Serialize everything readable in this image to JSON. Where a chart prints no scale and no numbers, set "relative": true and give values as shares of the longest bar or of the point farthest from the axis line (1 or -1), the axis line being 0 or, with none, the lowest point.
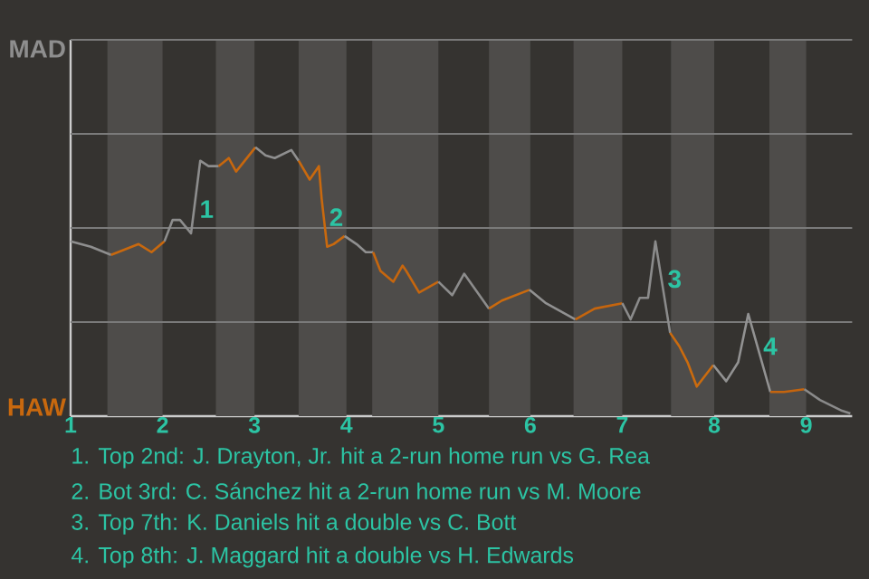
{
  "chart_data": {
    "type": "line",
    "relative": true,
    "xlim": [
      1,
      9.5
    ],
    "xticks": [
      1,
      2,
      3,
      4,
      5,
      6,
      7,
      8,
      9
    ],
    "ref_lines": [
      {
        "axis": "y",
        "value": 0.35,
        "color": "#7a7a7a"
      },
      {
        "axis": "y",
        "value": 0.7,
        "color": "#7a7a7a"
      },
      {
        "axis": "y",
        "value": 1.05,
        "color": "#7a7a7a"
      },
      {
        "axis": "y",
        "value": 1.4,
        "color": "#7a7a7a"
      }
    ],
    "bands": [
      {
        "axis": "x",
        "from": 1.4,
        "to": 2,
        "color": "#4e4c4a"
      },
      {
        "axis": "x",
        "from": 2.58,
        "to": 3,
        "color": "#4e4c4a"
      },
      {
        "axis": "x",
        "from": 3.48,
        "to": 4,
        "color": "#4e4c4a"
      },
      {
        "axis": "x",
        "from": 4.28,
        "to": 5,
        "color": "#4e4c4a"
      },
      {
        "axis": "x",
        "from": 5.55,
        "to": 6,
        "color": "#4e4c4a"
      },
      {
        "axis": "x",
        "from": 6.47,
        "to": 7,
        "color": "#4e4c4a"
      },
      {
        "axis": "x",
        "from": 7.53,
        "to": 8,
        "color": "#4e4c4a"
      },
      {
        "axis": "x",
        "from": 8.6,
        "to": 9,
        "color": "#4e4c4a"
      }
    ],
    "series": [
      {
        "name": "MAD",
        "color": "#8e8e8e",
        "x": [
          1.0,
          1.22,
          1.44
        ],
        "values": [
          0.65,
          0.63,
          0.6
        ]
      },
      {
        "name": "HAW",
        "color": "#c8680e",
        "x": [
          1.44,
          1.74,
          1.88,
          2.02
        ],
        "values": [
          0.6,
          0.64,
          0.61,
          0.65
        ]
      },
      {
        "color": "#8d8d8d",
        "x": [
          2.02,
          2.11,
          2.19,
          2.31,
          2.41,
          2.5,
          2.61
        ],
        "values": [
          0.65,
          0.73,
          0.73,
          0.68,
          0.95,
          0.93,
          0.93
        ]
      },
      {
        "color": "#c7670e",
        "x": [
          2.61,
          2.72,
          2.8,
          3.01
        ],
        "values": [
          0.93,
          0.96,
          0.91,
          1
        ]
      },
      {
        "color": "#8f8f8f",
        "x": [
          3.01,
          3.12,
          3.22,
          3.4,
          3.48
        ],
        "values": [
          1,
          0.97,
          0.96,
          0.99,
          0.95
        ]
      },
      {
        "color": "#c9690e",
        "x": [
          3.48,
          3.6,
          3.7,
          3.73,
          3.79,
          3.86,
          3.98
        ],
        "values": [
          0.95,
          0.88,
          0.93,
          0.81,
          0.63,
          0.64,
          0.67
        ]
      },
      {
        "color": "#909090",
        "x": [
          3.98,
          4.11,
          4.21,
          4.29
        ],
        "values": [
          0.67,
          0.64,
          0.61,
          0.61
        ]
      },
      {
        "color": "#c6660e",
        "x": [
          4.29,
          4.37,
          4.51,
          4.61,
          4.65,
          4.79,
          5.0
        ],
        "values": [
          0.61,
          0.54,
          0.5,
          0.56,
          0.54,
          0.46,
          0.5
        ]
      },
      {
        "color": "#8c8c8c",
        "x": [
          5.0,
          5.15,
          5.28,
          5.55
        ],
        "values": [
          0.5,
          0.45,
          0.53,
          0.4
        ]
      },
      {
        "color": "#ca6a0e",
        "x": [
          5.55,
          5.69,
          5.99
        ],
        "values": [
          0.4,
          0.43,
          0.47
        ]
      },
      {
        "color": "#919191",
        "x": [
          5.99,
          6.17,
          6.49
        ],
        "values": [
          0.47,
          0.42,
          0.36
        ]
      },
      {
        "color": "#c5650e",
        "x": [
          6.49,
          6.7,
          7.0
        ],
        "values": [
          0.36,
          0.4,
          0.42
        ]
      },
      {
        "color": "#8b8b8b",
        "x": [
          7.0,
          7.09,
          7.19,
          7.28,
          7.36,
          7.52
        ],
        "values": [
          0.42,
          0.36,
          0.44,
          0.44,
          0.65,
          0.31
        ]
      },
      {
        "color": "#cb6b0e",
        "x": [
          7.52,
          7.62,
          7.71,
          7.81,
          7.99
        ],
        "values": [
          0.31,
          0.26,
          0.2,
          0.11,
          0.19
        ]
      },
      {
        "color": "#929292",
        "x": [
          7.99,
          8.13,
          8.26,
          8.37,
          8.61
        ],
        "values": [
          0.19,
          0.13,
          0.2,
          0.38,
          0.09
        ]
      },
      {
        "color": "#c4640e",
        "x": [
          8.61,
          8.76,
          8.98
        ],
        "values": [
          0.09,
          0.09,
          0.1
        ]
      },
      {
        "color": "#8a8a8a",
        "x": [
          8.98,
          9.15,
          9.39,
          9.48
        ],
        "values": [
          0.1,
          0.06,
          0.02,
          0.01
        ]
      }
    ],
    "annotations": [
      {
        "text": "1",
        "x": 2.34,
        "y": 0.77
      },
      {
        "text": "2",
        "x": 3.75,
        "y": 0.74
      },
      {
        "text": "3",
        "x": 7.43,
        "y": 0.51
      },
      {
        "text": "4",
        "x": 8.47,
        "y": 0.26
      },
      "1. Top 2nd: J. Drayton, Jr. hit a 2-run home run vs G. Rea",
      "2. Bot 3rd: C. Sánchez hit a 2-run home run vs M. Moore",
      "3. Top 7th: K. Daniels hit a double vs C. Bott",
      "4. Top 8th: J. Maggard hit a double vs H. Edwards"
    ]
  }
}
